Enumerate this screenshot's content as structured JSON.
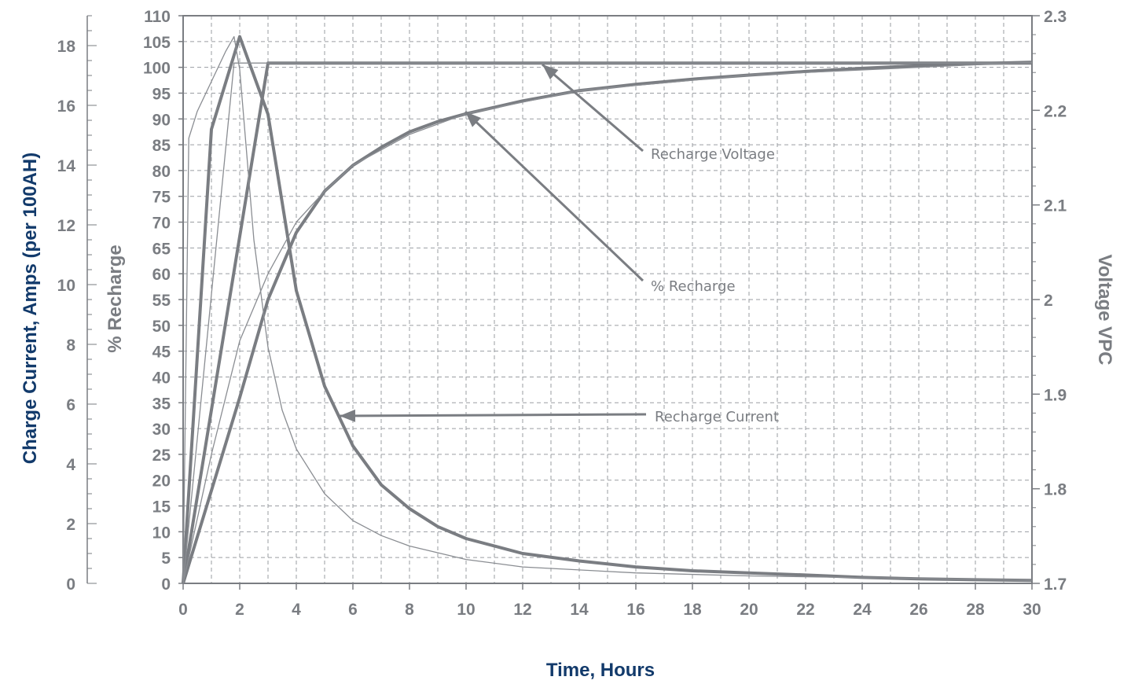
{
  "chart_data": {
    "type": "line",
    "xlabel": "Time, Hours",
    "ylabel_left_outer": "Charge Current, Amps (per 100AH)",
    "ylabel_left_inner": "% Recharge",
    "ylabel_right": "Voltage VPC",
    "xlim": [
      0,
      30
    ],
    "ylim_percent": [
      0,
      110
    ],
    "ylim_current": [
      0,
      19
    ],
    "ylim_voltage": [
      1.7,
      2.3
    ],
    "grid": true,
    "x_ticks": [
      "0",
      "2",
      "4",
      "6",
      "8",
      "10",
      "12",
      "14",
      "16",
      "18",
      "20",
      "22",
      "24",
      "26",
      "28",
      "30"
    ],
    "current_ticks": [
      "0",
      "2",
      "4",
      "6",
      "8",
      "10",
      "12",
      "14",
      "16",
      "18"
    ],
    "percent_ticks": [
      "0",
      "5",
      "10",
      "15",
      "20",
      "25",
      "30",
      "35",
      "40",
      "45",
      "50",
      "55",
      "60",
      "65",
      "70",
      "75",
      "80",
      "85",
      "90",
      "95",
      "100",
      "105",
      "110"
    ],
    "voltage_ticks": [
      "1.7",
      "1.8",
      "1.9",
      "2",
      "2.1",
      "2.2",
      "2.3"
    ],
    "series": [
      {
        "name": "Recharge Voltage",
        "axis": "voltage",
        "weight": "heavy",
        "x": [
          0,
          3,
          5,
          10,
          15,
          20,
          25,
          30
        ],
        "y": [
          1.7,
          2.25,
          2.25,
          2.25,
          2.25,
          2.25,
          2.25,
          2.25
        ]
      },
      {
        "name": "% Recharge",
        "axis": "percent",
        "weight": "heavy",
        "x": [
          0,
          1,
          2,
          3,
          4,
          5,
          6,
          7,
          8,
          9,
          10,
          12,
          14,
          16,
          18,
          20,
          22,
          24,
          26,
          28,
          30
        ],
        "y": [
          0,
          18,
          36,
          55,
          68,
          76,
          81,
          84.5,
          87.5,
          89.5,
          91,
          93.5,
          95.5,
          96.7,
          97.7,
          98.5,
          99.2,
          99.8,
          100.3,
          100.7,
          101
        ]
      },
      {
        "name": "Recharge Current",
        "axis": "current",
        "weight": "heavy",
        "x": [
          0,
          1,
          2,
          3,
          4,
          5,
          6,
          7,
          8,
          9,
          10,
          12,
          14,
          16,
          18,
          20,
          22,
          24,
          26,
          28,
          30
        ],
        "y": [
          0,
          15.2,
          18.3,
          15.7,
          9.8,
          6.6,
          4.6,
          3.3,
          2.5,
          1.9,
          1.5,
          1.0,
          0.75,
          0.55,
          0.42,
          0.35,
          0.28,
          0.2,
          0.15,
          0.12,
          0.1
        ]
      },
      {
        "weight": "light",
        "axis": "voltage",
        "x": [
          0,
          1.8,
          3,
          5,
          10,
          20,
          30
        ],
        "y": [
          1.7,
          2.25,
          2.25,
          2.25,
          2.25,
          2.25,
          2.25
        ]
      },
      {
        "weight": "light",
        "axis": "percent",
        "x": [
          0,
          1,
          2,
          3,
          4,
          5,
          6,
          8,
          10,
          14,
          20,
          30
        ],
        "y": [
          0,
          25,
          47,
          60,
          70,
          76,
          81,
          87,
          91,
          95.5,
          98.5,
          101
        ]
      },
      {
        "weight": "light",
        "axis": "current",
        "x": [
          0,
          0.2,
          0.5,
          1,
          1.5,
          1.8,
          2,
          2.5,
          3,
          3.5,
          4,
          5,
          6,
          7,
          8,
          10,
          12,
          16,
          20,
          30
        ],
        "y": [
          0,
          14.9,
          15.8,
          16.8,
          17.8,
          18.3,
          17.2,
          11.5,
          7.9,
          5.8,
          4.5,
          3.0,
          2.1,
          1.6,
          1.25,
          0.8,
          0.55,
          0.35,
          0.25,
          0.1
        ]
      }
    ],
    "annotations": [
      {
        "label": "Recharge Voltage",
        "target": "Recharge Voltage"
      },
      {
        "label": "% Recharge",
        "target": "% Recharge"
      },
      {
        "label": "Recharge Current",
        "target": "Recharge Current"
      }
    ]
  }
}
